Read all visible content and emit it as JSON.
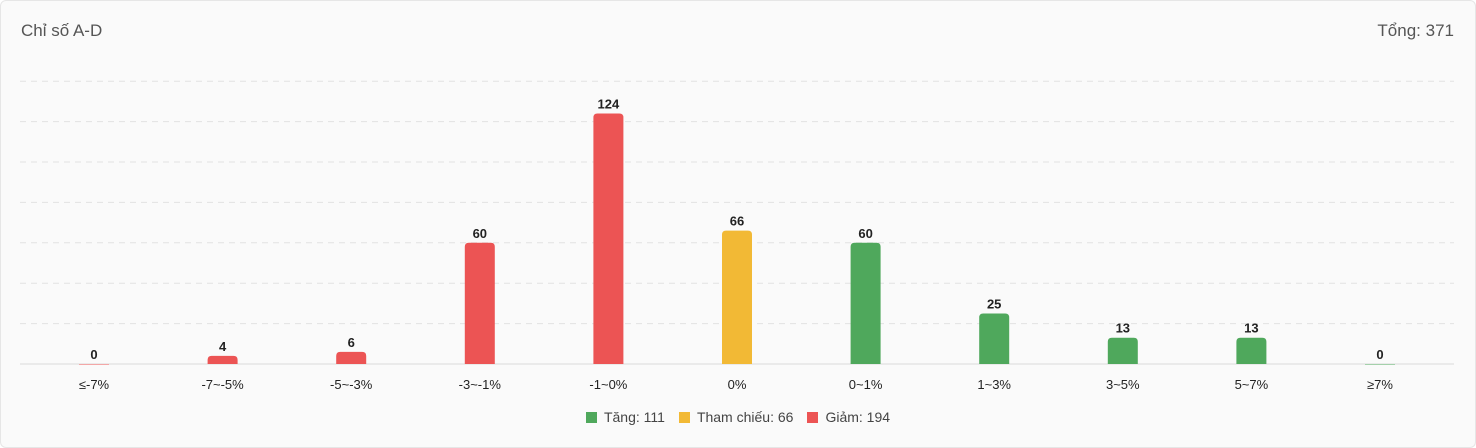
{
  "header": {
    "title": "Chỉ số A-D",
    "total_label": "Tổng:",
    "total_value": "371"
  },
  "colors": {
    "up": "#4fa85c",
    "ref": "#f2b935",
    "down": "#ec5454"
  },
  "legend": [
    {
      "key": "up",
      "label": "Tăng: 111"
    },
    {
      "key": "ref",
      "label": "Tham chiếu: 66"
    },
    {
      "key": "down",
      "label": "Giảm: 194"
    }
  ],
  "chart_data": {
    "type": "bar",
    "categories": [
      "≤-7%",
      "-7~-5%",
      "-5~-3%",
      "-3~-1%",
      "-1~0%",
      "0%",
      "0~1%",
      "1~3%",
      "3~5%",
      "5~7%",
      "≥7%"
    ],
    "values": [
      0,
      4,
      6,
      60,
      124,
      66,
      60,
      25,
      13,
      13,
      0
    ],
    "bar_groups": [
      "down",
      "down",
      "down",
      "down",
      "down",
      "ref",
      "up",
      "up",
      "up",
      "up",
      "up"
    ],
    "ylim": [
      0,
      140
    ],
    "grid": "horizontal dashed",
    "legend_position": "bottom"
  }
}
